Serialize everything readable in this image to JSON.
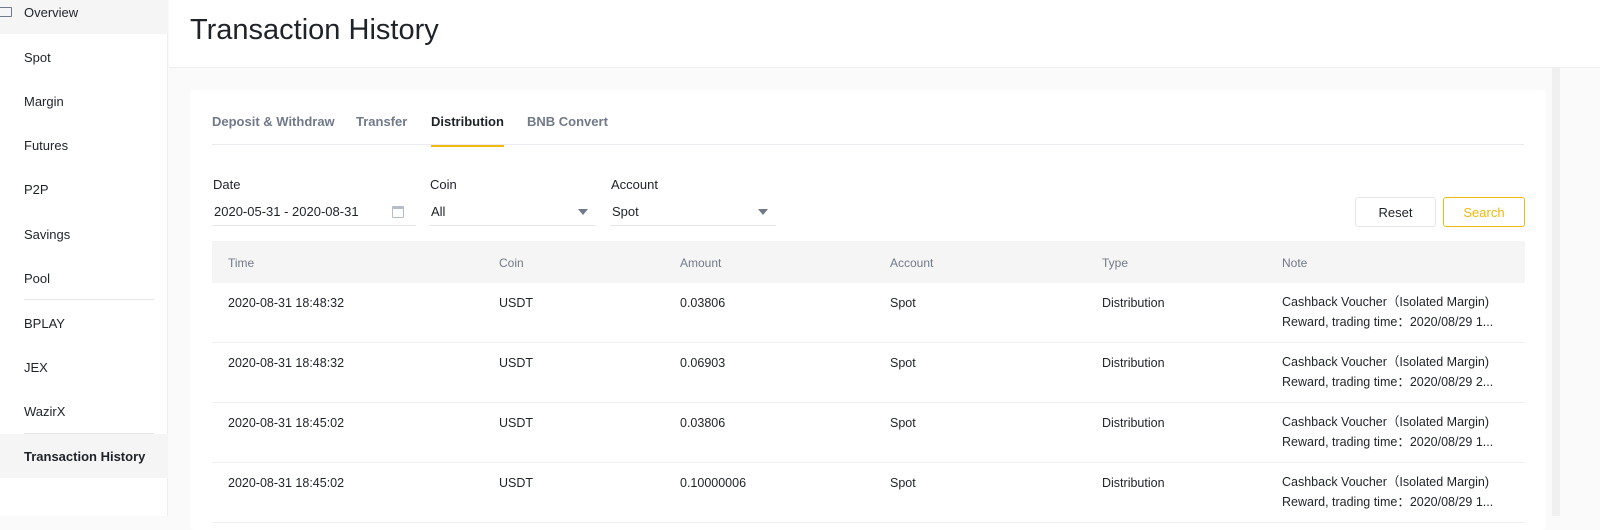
{
  "sidebar": {
    "items": [
      "Overview",
      "Spot",
      "Margin",
      "Futures",
      "P2P",
      "Savings",
      "Pool",
      "BPLAY",
      "JEX",
      "WazirX",
      "Transaction History"
    ],
    "active": "Transaction History"
  },
  "header": {
    "title": "Transaction History"
  },
  "tabs": [
    "Deposit & Withdraw",
    "Transfer",
    "Distribution",
    "BNB Convert"
  ],
  "active_tab": "Distribution",
  "filters": {
    "date_label": "Date",
    "date_value": "2020-05-31 - 2020-08-31",
    "coin_label": "Coin",
    "coin_value": "All",
    "account_label": "Account",
    "account_value": "Spot",
    "reset": "Reset",
    "search": "Search"
  },
  "table": {
    "columns": [
      "Time",
      "Coin",
      "Amount",
      "Account",
      "Type",
      "Note"
    ],
    "rows": [
      {
        "time": "2020-08-31 18:48:32",
        "coin": "USDT",
        "amount": "0.03806",
        "account": "Spot",
        "type": "Distribution",
        "note1": "Cashback Voucher（Isolated Margin)",
        "note2": "Reward, trading time：2020/08/29 1..."
      },
      {
        "time": "2020-08-31 18:48:32",
        "coin": "USDT",
        "amount": "0.06903",
        "account": "Spot",
        "type": "Distribution",
        "note1": "Cashback Voucher（Isolated Margin)",
        "note2": "Reward, trading time：2020/08/29 2..."
      },
      {
        "time": "2020-08-31 18:45:02",
        "coin": "USDT",
        "amount": "0.03806",
        "account": "Spot",
        "type": "Distribution",
        "note1": "Cashback Voucher（Isolated Margin)",
        "note2": "Reward, trading time：2020/08/29 1..."
      },
      {
        "time": "2020-08-31 18:45:02",
        "coin": "USDT",
        "amount": "0.10000006",
        "account": "Spot",
        "type": "Distribution",
        "note1": "Cashback Voucher（Isolated Margin)",
        "note2": "Reward, trading time：2020/08/29 1..."
      }
    ]
  },
  "colors": {
    "accent": "#f0b90b",
    "text": "#1e2329",
    "muted": "#707a8a"
  }
}
